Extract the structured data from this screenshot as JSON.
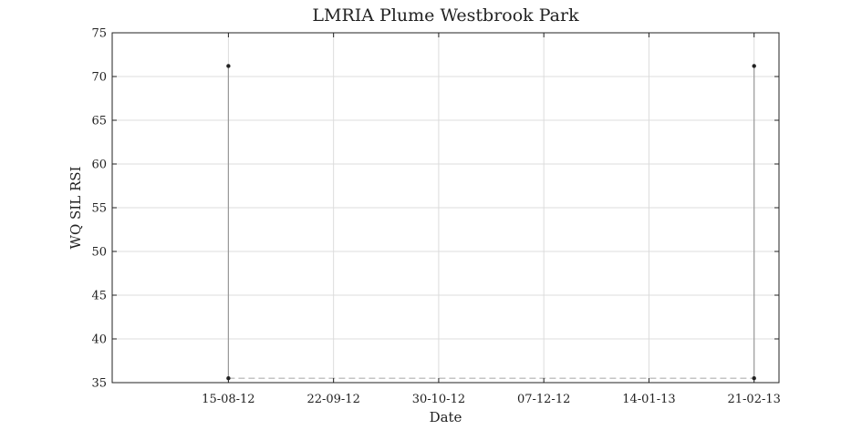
{
  "chart_data": {
    "type": "line",
    "title": "LMRIA Plume Westbrook Park",
    "xlabel": "Date",
    "ylabel": "WQ SIL RSI",
    "ylim": [
      35,
      75
    ],
    "yticks": [
      35,
      40,
      45,
      50,
      55,
      60,
      65,
      70,
      75
    ],
    "xlim": [
      "2012-07-04",
      "2013-03-02"
    ],
    "xticks": [
      {
        "date": "2012-08-15",
        "label": "15-08-12"
      },
      {
        "date": "2012-09-22",
        "label": "22-09-12"
      },
      {
        "date": "2012-10-30",
        "label": "30-10-12"
      },
      {
        "date": "2012-12-07",
        "label": "07-12-12"
      },
      {
        "date": "2013-01-14",
        "label": "14-01-13"
      },
      {
        "date": "2013-02-21",
        "label": "21-02-13"
      }
    ],
    "grid": true,
    "series": [
      {
        "style": "solid",
        "color": "#9a9a9a",
        "segments": [
          [
            {
              "x": "2012-08-15",
              "y": 35.5
            },
            {
              "x": "2012-08-15",
              "y": 71.2
            }
          ],
          [
            {
              "x": "2013-02-21",
              "y": 35.5
            },
            {
              "x": "2013-02-21",
              "y": 71.2
            }
          ]
        ]
      },
      {
        "style": "dashed",
        "color": "#b0b0b0",
        "segments": [
          [
            {
              "x": "2012-08-15",
              "y": 35.5
            },
            {
              "x": "2013-02-21",
              "y": 35.5
            }
          ]
        ]
      },
      {
        "style": "markers",
        "color": "#222222",
        "points": [
          {
            "x": "2012-08-15",
            "y": 71.2
          },
          {
            "x": "2012-08-15",
            "y": 35.5
          },
          {
            "x": "2013-02-21",
            "y": 71.2
          },
          {
            "x": "2013-02-21",
            "y": 35.5
          }
        ]
      }
    ]
  }
}
